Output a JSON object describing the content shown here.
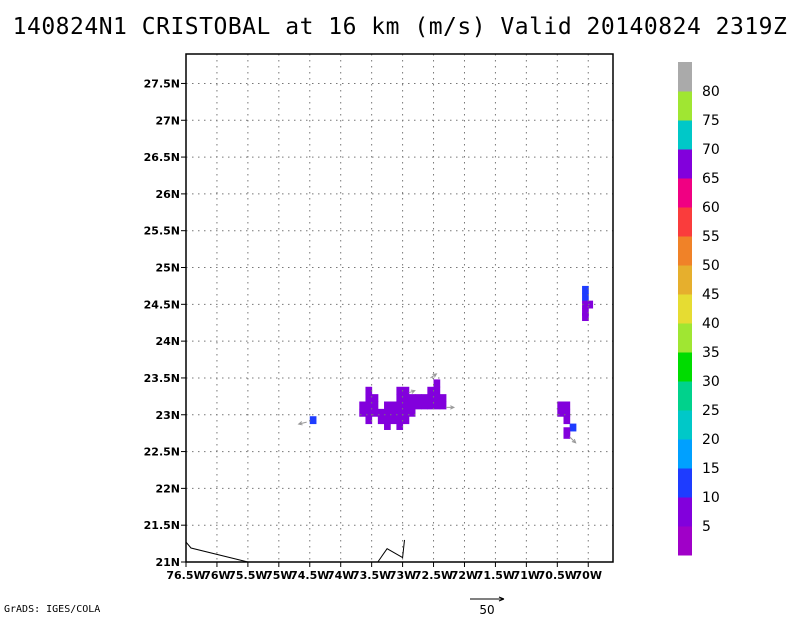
{
  "title": "140824N1 CRISTOBAL at 16 km (m/s) Valid 20140824 2319Z",
  "map": {
    "lon_range": [
      -76.5,
      -69.6
    ],
    "lat_range": [
      21.0,
      27.9
    ],
    "x_ticks": [
      {
        "value": -76.5,
        "label": "76.5W"
      },
      {
        "value": -76.0,
        "label": "76W"
      },
      {
        "value": -75.5,
        "label": "75.5W"
      },
      {
        "value": -75.0,
        "label": "75W"
      },
      {
        "value": -74.5,
        "label": "74.5W"
      },
      {
        "value": -74.0,
        "label": "74W"
      },
      {
        "value": -73.5,
        "label": "73.5W"
      },
      {
        "value": -73.0,
        "label": "73W"
      },
      {
        "value": -72.5,
        "label": "72.5W"
      },
      {
        "value": -72.0,
        "label": "72W"
      },
      {
        "value": -71.5,
        "label": "71.5W"
      },
      {
        "value": -71.0,
        "label": "71W"
      },
      {
        "value": -70.5,
        "label": "70.5W"
      },
      {
        "value": -70.0,
        "label": "70W"
      }
    ],
    "y_ticks": [
      {
        "value": 21.0,
        "label": "21N"
      },
      {
        "value": 21.5,
        "label": "21.5N"
      },
      {
        "value": 22.0,
        "label": "22N"
      },
      {
        "value": 22.5,
        "label": "22.5N"
      },
      {
        "value": 23.0,
        "label": "23N"
      },
      {
        "value": 23.5,
        "label": "23.5N"
      },
      {
        "value": 24.0,
        "label": "24N"
      },
      {
        "value": 24.5,
        "label": "24.5N"
      },
      {
        "value": 25.0,
        "label": "25N"
      },
      {
        "value": 25.5,
        "label": "25.5N"
      },
      {
        "value": 26.0,
        "label": "26N"
      },
      {
        "value": 26.5,
        "label": "26.5N"
      },
      {
        "value": 27.0,
        "label": "27N"
      },
      {
        "value": 27.5,
        "label": "27.5N"
      }
    ],
    "grid": "dotted",
    "coastline": [
      [
        [
          -76.5,
          21.27
        ],
        [
          -76.42,
          21.19
        ],
        [
          -75.5,
          21.0
        ]
      ],
      [
        [
          -73.4,
          21.0
        ],
        [
          -73.25,
          21.18
        ],
        [
          -73.0,
          21.06
        ],
        [
          -72.97,
          21.3
        ]
      ]
    ],
    "wind_cells": [
      {
        "lon": -74.45,
        "lat": 22.93,
        "speed": 12
      },
      {
        "lon": -73.65,
        "lat": 23.03,
        "speed": 8
      },
      {
        "lon": -73.55,
        "lat": 23.03,
        "speed": 7
      },
      {
        "lon": -73.45,
        "lat": 23.03,
        "speed": 6
      },
      {
        "lon": -73.35,
        "lat": 23.03,
        "speed": 8
      },
      {
        "lon": -73.25,
        "lat": 23.03,
        "speed": 7
      },
      {
        "lon": -73.15,
        "lat": 23.03,
        "speed": 6
      },
      {
        "lon": -73.05,
        "lat": 23.03,
        "speed": 7
      },
      {
        "lon": -72.95,
        "lat": 23.03,
        "speed": 8
      },
      {
        "lon": -72.85,
        "lat": 23.03,
        "speed": 7
      },
      {
        "lon": -73.55,
        "lat": 22.93,
        "speed": 6
      },
      {
        "lon": -73.35,
        "lat": 22.93,
        "speed": 7
      },
      {
        "lon": -73.25,
        "lat": 22.93,
        "speed": 8
      },
      {
        "lon": -73.15,
        "lat": 22.93,
        "speed": 6
      },
      {
        "lon": -73.05,
        "lat": 22.93,
        "speed": 7
      },
      {
        "lon": -72.95,
        "lat": 22.93,
        "speed": 6
      },
      {
        "lon": -73.25,
        "lat": 22.85,
        "speed": 7
      },
      {
        "lon": -73.05,
        "lat": 22.85,
        "speed": 6
      },
      {
        "lon": -73.65,
        "lat": 23.13,
        "speed": 7
      },
      {
        "lon": -73.55,
        "lat": 23.13,
        "speed": 8
      },
      {
        "lon": -73.45,
        "lat": 23.13,
        "speed": 6
      },
      {
        "lon": -73.25,
        "lat": 23.13,
        "speed": 7
      },
      {
        "lon": -73.15,
        "lat": 23.13,
        "speed": 6
      },
      {
        "lon": -73.05,
        "lat": 23.13,
        "speed": 8
      },
      {
        "lon": -72.95,
        "lat": 23.13,
        "speed": 7
      },
      {
        "lon": -72.85,
        "lat": 23.13,
        "speed": 7
      },
      {
        "lon": -72.75,
        "lat": 23.13,
        "speed": 6
      },
      {
        "lon": -72.65,
        "lat": 23.13,
        "speed": 8
      },
      {
        "lon": -72.55,
        "lat": 23.13,
        "speed": 7
      },
      {
        "lon": -72.45,
        "lat": 23.13,
        "speed": 6
      },
      {
        "lon": -72.35,
        "lat": 23.13,
        "speed": 7
      },
      {
        "lon": -73.55,
        "lat": 23.23,
        "speed": 7
      },
      {
        "lon": -73.45,
        "lat": 23.23,
        "speed": 6
      },
      {
        "lon": -73.05,
        "lat": 23.23,
        "speed": 6
      },
      {
        "lon": -72.95,
        "lat": 23.23,
        "speed": 7
      },
      {
        "lon": -72.85,
        "lat": 23.23,
        "speed": 8
      },
      {
        "lon": -72.75,
        "lat": 23.23,
        "speed": 6
      },
      {
        "lon": -72.65,
        "lat": 23.23,
        "speed": 7
      },
      {
        "lon": -72.55,
        "lat": 23.23,
        "speed": 8
      },
      {
        "lon": -72.45,
        "lat": 23.23,
        "speed": 7
      },
      {
        "lon": -72.35,
        "lat": 23.23,
        "speed": 6
      },
      {
        "lon": -73.55,
        "lat": 23.33,
        "speed": 6
      },
      {
        "lon": -73.05,
        "lat": 23.33,
        "speed": 7
      },
      {
        "lon": -72.95,
        "lat": 23.33,
        "speed": 6
      },
      {
        "lon": -72.55,
        "lat": 23.33,
        "speed": 7
      },
      {
        "lon": -72.45,
        "lat": 23.33,
        "speed": 6
      },
      {
        "lon": -72.45,
        "lat": 23.43,
        "speed": 7
      },
      {
        "lon": -70.45,
        "lat": 23.13,
        "speed": 7
      },
      {
        "lon": -70.35,
        "lat": 23.13,
        "speed": 8
      },
      {
        "lon": -70.45,
        "lat": 23.03,
        "speed": 6
      },
      {
        "lon": -70.35,
        "lat": 23.03,
        "speed": 7
      },
      {
        "lon": -70.35,
        "lat": 22.93,
        "speed": 6
      },
      {
        "lon": -70.25,
        "lat": 22.83,
        "speed": 12
      },
      {
        "lon": -70.35,
        "lat": 22.78,
        "speed": 7
      },
      {
        "lon": -70.35,
        "lat": 22.73,
        "speed": 8
      },
      {
        "lon": -70.05,
        "lat": 24.7,
        "speed": 12
      },
      {
        "lon": -70.05,
        "lat": 24.6,
        "speed": 12
      },
      {
        "lon": -70.05,
        "lat": 24.5,
        "speed": 7
      },
      {
        "lon": -69.98,
        "lat": 24.5,
        "speed": 6
      },
      {
        "lon": -70.05,
        "lat": 24.4,
        "speed": 8
      },
      {
        "lon": -70.05,
        "lat": 24.33,
        "speed": 7
      }
    ],
    "vectors": [
      {
        "lon": -74.55,
        "lat": 22.9,
        "u": -4,
        "v": -1
      },
      {
        "lon": -72.3,
        "lat": 23.1,
        "u": 4,
        "v": 0
      },
      {
        "lon": -72.55,
        "lat": 23.5,
        "u": 3,
        "v": 2
      },
      {
        "lon": -72.9,
        "lat": 23.3,
        "u": 3,
        "v": 1
      },
      {
        "lon": -70.3,
        "lat": 22.7,
        "u": 3,
        "v": -3
      }
    ]
  },
  "colorbar": {
    "colors": [
      "#a000c8",
      "#8200dc",
      "#1e3cff",
      "#00a0ff",
      "#00c8c8",
      "#00d28c",
      "#00dc00",
      "#a0e632",
      "#e6dc32",
      "#e6af2d",
      "#f08228",
      "#fa3c3c",
      "#f00082",
      "#8200dc",
      "#00c8c8",
      "#a0e632",
      "#aaaaaa"
    ],
    "labels": [
      "5",
      "10",
      "15",
      "20",
      "25",
      "30",
      "35",
      "40",
      "45",
      "50",
      "55",
      "60",
      "65",
      "70",
      "75",
      "80"
    ]
  },
  "scale_vector": {
    "label": "50"
  },
  "footer": "GrADS: IGES/COLA"
}
